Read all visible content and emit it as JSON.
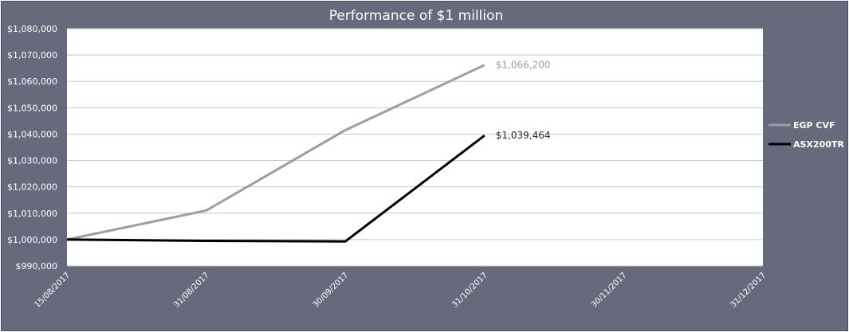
{
  "colors": {
    "frame_bg": "#676a7c",
    "plot_bg": "#ffffff",
    "grid": "#c8c8c8",
    "text": "#ffffff"
  },
  "chart_data": {
    "type": "line",
    "title": "Performance of $1 million",
    "xlabel": "",
    "ylabel": "",
    "ylim": [
      990000,
      1080000
    ],
    "y_ticks": [
      990000,
      1000000,
      1010000,
      1020000,
      1030000,
      1040000,
      1050000,
      1060000,
      1070000,
      1080000
    ],
    "y_tick_labels": [
      "$990,000",
      "$1,000,000",
      "$1,010,000",
      "$1,020,000",
      "$1,030,000",
      "$1,040,000",
      "$1,050,000",
      "$1,060,000",
      "$1,070,000",
      "$1,080,000"
    ],
    "x": [
      "15/08/2017",
      "31/08/2017",
      "30/09/2017",
      "31/10/2017",
      "30/11/2017",
      "31/12/2017"
    ],
    "x_tick_labels": [
      "15/08/2017",
      "31/08/2017",
      "30/09/2017",
      "31/10/2017",
      "30/11/2017",
      "31/12/2017"
    ],
    "grid": true,
    "legend_position": "right",
    "series": [
      {
        "name": "EGP CVF",
        "color": "#9a9ea6",
        "values": [
          1000000,
          1011000,
          1041500,
          1066200,
          null,
          null
        ],
        "end_label": "$1,066,200"
      },
      {
        "name": "ASX200TR",
        "color": "#000000",
        "values": [
          1000000,
          999500,
          999300,
          1039464,
          null,
          null
        ],
        "end_label": "$1,039,464"
      }
    ]
  }
}
